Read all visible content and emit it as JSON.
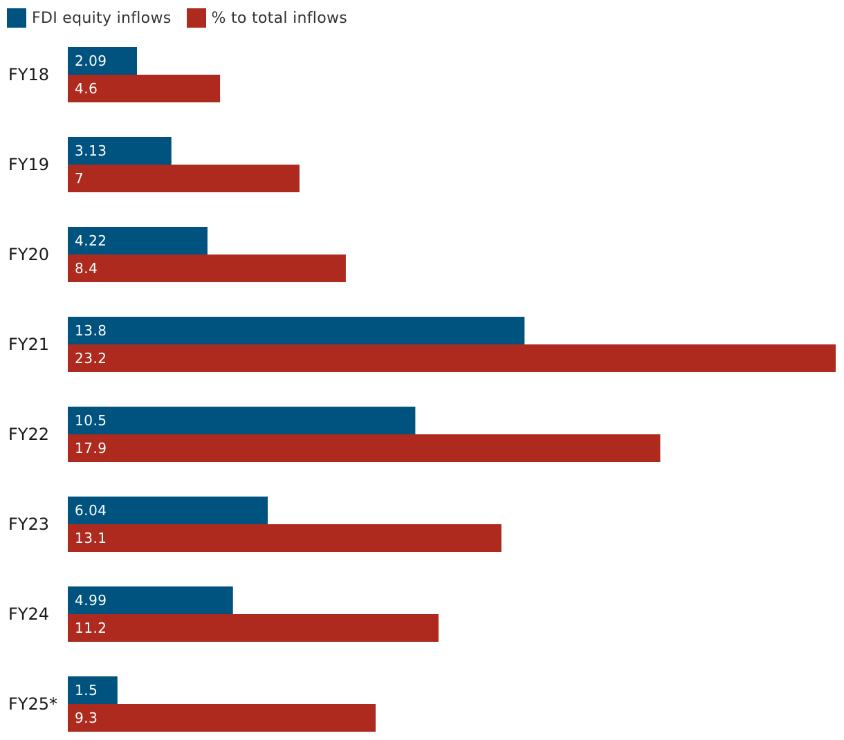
{
  "legend": {
    "series1": "FDI equity inflows",
    "series2": "% to total inflows"
  },
  "chart_data": {
    "type": "bar",
    "orientation": "horizontal",
    "categories": [
      "FY18",
      "FY19",
      "FY20",
      "FY21",
      "FY22",
      "FY23",
      "FY24",
      "FY25*"
    ],
    "series": [
      {
        "name": "FDI equity inflows",
        "color": "#00527f",
        "values": [
          2.09,
          3.13,
          4.22,
          13.8,
          10.5,
          6.04,
          4.99,
          1.5
        ],
        "labels": [
          "2.09",
          "3.13",
          "4.22",
          "13.8",
          "10.5",
          "6.04",
          "4.99",
          "1.5"
        ]
      },
      {
        "name": "% to total inflows",
        "color": "#ae2a1e",
        "values": [
          4.6,
          7,
          8.4,
          23.2,
          17.9,
          13.1,
          11.2,
          9.3
        ],
        "labels": [
          "4.6",
          "7",
          "8.4",
          "23.2",
          "17.9",
          "13.1",
          "11.2",
          "9.3"
        ]
      }
    ],
    "xlim": [
      0,
      23.2
    ],
    "grid": false,
    "legend_position": "top-left"
  }
}
